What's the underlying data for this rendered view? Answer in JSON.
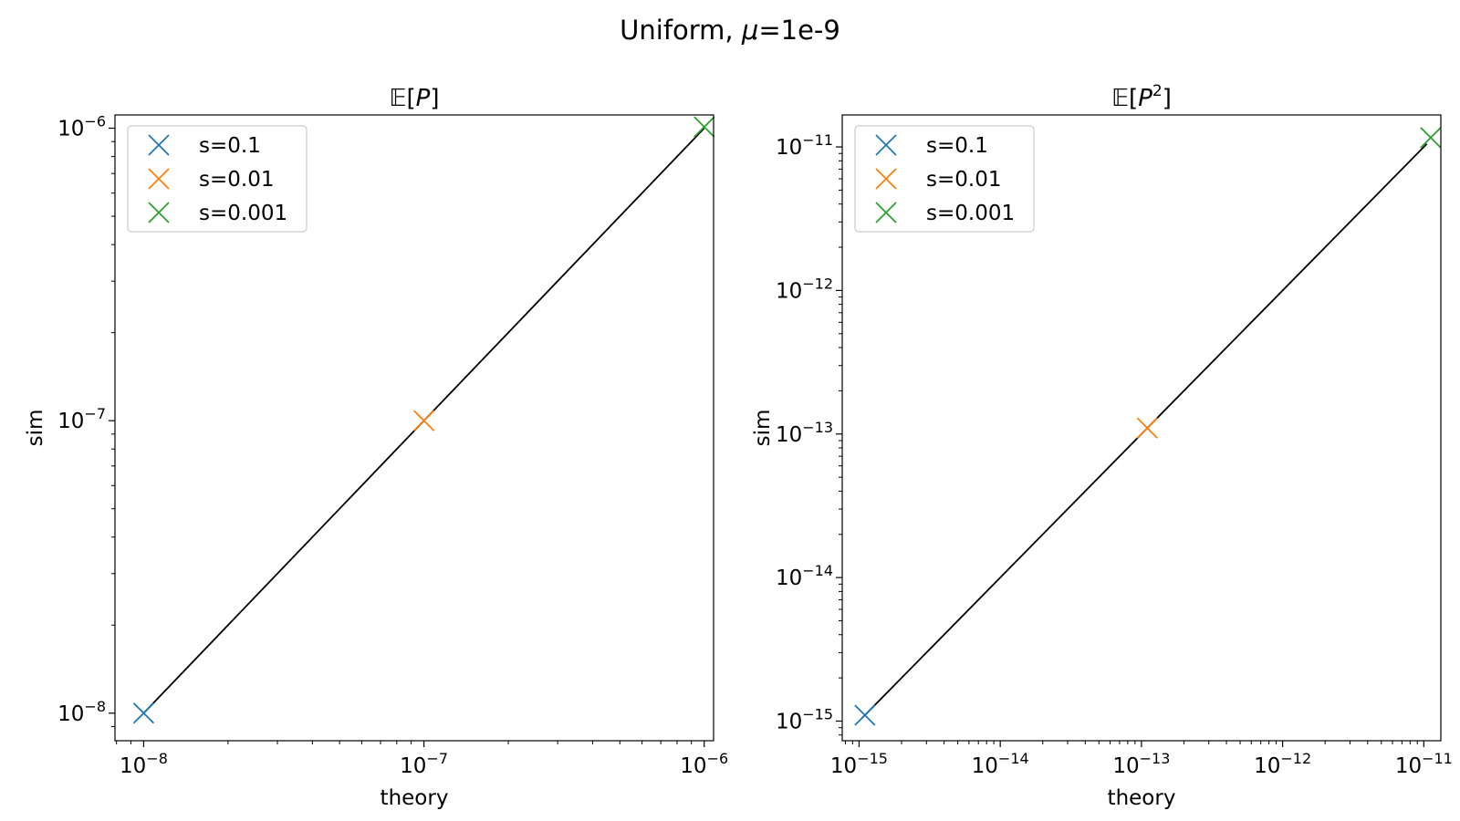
{
  "suptitle": {
    "prefix": "Uniform, ",
    "mu": "μ",
    "suffix": "=1e-9"
  },
  "colors": {
    "s01": "#1f77b4",
    "s001": "#ff7f0e",
    "s0001": "#2ca02c",
    "line": "#000000"
  },
  "chart_data": [
    {
      "type": "scatter",
      "title": {
        "open": "𝔼[",
        "var": "P",
        "sup": "",
        "close": "]"
      },
      "xlabel": "theory",
      "ylabel": "sim",
      "xscale": "log",
      "yscale": "log",
      "xlim": [
        7.9e-09,
        1.08e-06
      ],
      "ylim": [
        8.05e-09,
        1.11e-06
      ],
      "xticks": [
        {
          "base": "10",
          "exp": "−8",
          "value": 1e-08
        },
        {
          "base": "10",
          "exp": "−7",
          "value": 1e-07
        },
        {
          "base": "10",
          "exp": "−6",
          "value": 1e-06
        }
      ],
      "yticks": [
        {
          "base": "10",
          "exp": "−8",
          "value": 1e-08
        },
        {
          "base": "10",
          "exp": "−7",
          "value": 1e-07
        },
        {
          "base": "10",
          "exp": "−6",
          "value": 1e-06
        }
      ],
      "reference_line": {
        "x": [
          1e-08,
          1e-06
        ],
        "y": [
          1e-08,
          1e-06
        ]
      },
      "series": [
        {
          "name": "s=0.1",
          "color": "#1f77b4",
          "marker": "x",
          "points": [
            {
              "x": 1e-08,
              "y": 1e-08
            }
          ]
        },
        {
          "name": "s=0.01",
          "color": "#ff7f0e",
          "marker": "x",
          "points": [
            {
              "x": 1e-07,
              "y": 1e-07
            }
          ]
        },
        {
          "name": "s=0.001",
          "color": "#2ca02c",
          "marker": "x",
          "points": [
            {
              "x": 1e-06,
              "y": 1.01e-06
            }
          ]
        }
      ],
      "legend": {
        "location": "upper left"
      },
      "grid": false
    },
    {
      "type": "scatter",
      "title": {
        "open": "𝔼[",
        "var": "P",
        "sup": "2",
        "close": "]"
      },
      "xlabel": "theory",
      "ylabel": "sim",
      "xscale": "log",
      "yscale": "log",
      "xlim": [
        7.6e-16,
        1.32e-11
      ],
      "ylim": [
        7.3e-16,
        1.67e-11
      ],
      "xticks": [
        {
          "base": "10",
          "exp": "−15",
          "value": 1e-15
        },
        {
          "base": "10",
          "exp": "−14",
          "value": 1e-14
        },
        {
          "base": "10",
          "exp": "−13",
          "value": 1e-13
        },
        {
          "base": "10",
          "exp": "−12",
          "value": 1e-12
        },
        {
          "base": "10",
          "exp": "−11",
          "value": 1e-11
        }
      ],
      "yticks": [
        {
          "base": "10",
          "exp": "−15",
          "value": 1e-15
        },
        {
          "base": "10",
          "exp": "−14",
          "value": 1e-14
        },
        {
          "base": "10",
          "exp": "−13",
          "value": 1e-13
        },
        {
          "base": "10",
          "exp": "−12",
          "value": 1e-12
        },
        {
          "base": "10",
          "exp": "−11",
          "value": 1e-11
        }
      ],
      "reference_line": {
        "x": [
          1.05e-15,
          1.05e-11
        ],
        "y": [
          1.05e-15,
          1.05e-11
        ]
      },
      "series": [
        {
          "name": "s=0.1",
          "color": "#1f77b4",
          "marker": "x",
          "points": [
            {
              "x": 1.1e-15,
              "y": 1.1e-15
            }
          ]
        },
        {
          "name": "s=0.01",
          "color": "#ff7f0e",
          "marker": "x",
          "points": [
            {
              "x": 1.1e-13,
              "y": 1.1e-13
            }
          ]
        },
        {
          "name": "s=0.001",
          "color": "#2ca02c",
          "marker": "x",
          "points": [
            {
              "x": 1.12e-11,
              "y": 1.16e-11
            }
          ]
        }
      ],
      "legend": {
        "location": "upper left"
      },
      "grid": false
    }
  ]
}
